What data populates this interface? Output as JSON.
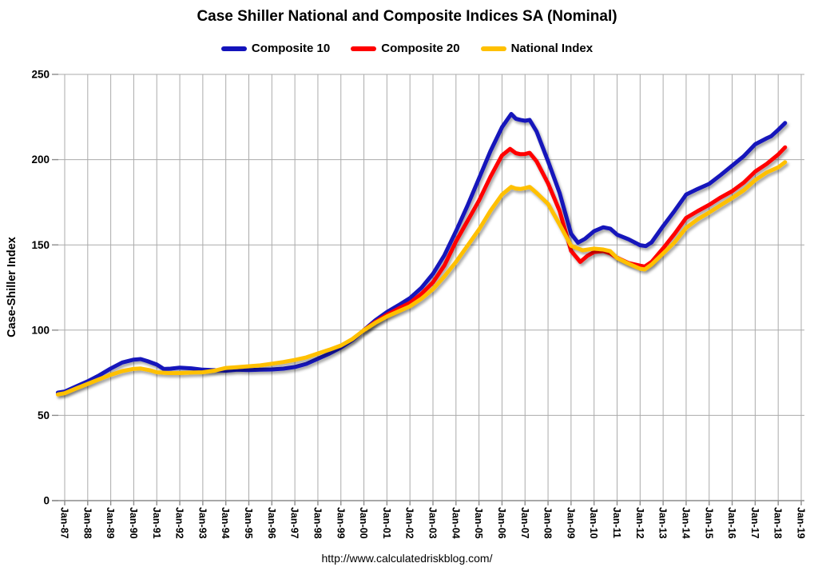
{
  "chart_data": {
    "type": "line",
    "title": "Case Shiller National and Composite Indices SA (Nominal)",
    "footer": "http://www.calculatedriskblog.com/",
    "xlabel": "",
    "ylabel": "Case-Shiller Index",
    "ylim": [
      0,
      250
    ],
    "ytick_step": 50,
    "grid": true,
    "legend_position": "top-center",
    "x_ticks": [
      "Jan-87",
      "Jan-88",
      "Jan-89",
      "Jan-90",
      "Jan-91",
      "Jan-92",
      "Jan-93",
      "Jan-94",
      "Jan-95",
      "Jan-96",
      "Jan-97",
      "Jan-98",
      "Jan-99",
      "Jan-00",
      "Jan-01",
      "Jan-02",
      "Jan-03",
      "Jan-04",
      "Jan-05",
      "Jan-06",
      "Jan-07",
      "Jan-08",
      "Jan-09",
      "Jan-10",
      "Jan-11",
      "Jan-12",
      "Jan-13",
      "Jan-14",
      "Jan-15",
      "Jan-16",
      "Jan-17",
      "Jan-18",
      "Jan-19"
    ],
    "x_unit": "year (Jan of each year shown; data plotted monthly from Jan-87 to ~Apr-18)",
    "series": [
      {
        "name": "Composite 10",
        "color": "#1313BB",
        "points": [
          [
            1986.7,
            63.3
          ],
          [
            1987.0,
            64.0
          ],
          [
            1987.5,
            67.0
          ],
          [
            1988.0,
            70.0
          ],
          [
            1988.5,
            73.5
          ],
          [
            1989.0,
            77.5
          ],
          [
            1989.5,
            81.0
          ],
          [
            1990.0,
            82.7
          ],
          [
            1990.3,
            83.0
          ],
          [
            1990.6,
            81.8
          ],
          [
            1991.0,
            79.8
          ],
          [
            1991.3,
            77.2
          ],
          [
            1991.6,
            77.4
          ],
          [
            1992.0,
            78.0
          ],
          [
            1992.5,
            77.6
          ],
          [
            1993.0,
            76.8
          ],
          [
            1993.5,
            76.5
          ],
          [
            1994.0,
            76.2
          ],
          [
            1994.5,
            76.8
          ],
          [
            1995.0,
            76.6
          ],
          [
            1995.5,
            76.8
          ],
          [
            1996.0,
            76.9
          ],
          [
            1996.5,
            77.4
          ],
          [
            1997.0,
            78.4
          ],
          [
            1997.5,
            80.2
          ],
          [
            1998.0,
            83.2
          ],
          [
            1998.5,
            86.2
          ],
          [
            1999.0,
            89.8
          ],
          [
            1999.5,
            94.2
          ],
          [
            2000.0,
            100.0
          ],
          [
            2000.5,
            105.8
          ],
          [
            2001.0,
            110.6
          ],
          [
            2001.5,
            114.6
          ],
          [
            2002.0,
            118.8
          ],
          [
            2002.5,
            124.8
          ],
          [
            2003.0,
            133.0
          ],
          [
            2003.5,
            144.0
          ],
          [
            2004.0,
            158.0
          ],
          [
            2004.5,
            173.0
          ],
          [
            2005.0,
            189.0
          ],
          [
            2005.5,
            205.0
          ],
          [
            2006.0,
            219.0
          ],
          [
            2006.4,
            226.8
          ],
          [
            2006.6,
            224.0
          ],
          [
            2006.8,
            223.3
          ],
          [
            2007.0,
            222.8
          ],
          [
            2007.2,
            223.3
          ],
          [
            2007.5,
            216.5
          ],
          [
            2008.0,
            199.0
          ],
          [
            2008.5,
            180.5
          ],
          [
            2009.0,
            156.5
          ],
          [
            2009.3,
            151.3
          ],
          [
            2009.6,
            153.5
          ],
          [
            2010.0,
            158.0
          ],
          [
            2010.4,
            160.3
          ],
          [
            2010.7,
            159.5
          ],
          [
            2011.0,
            156.0
          ],
          [
            2011.5,
            153.3
          ],
          [
            2012.0,
            149.8
          ],
          [
            2012.25,
            149.3
          ],
          [
            2012.5,
            151.5
          ],
          [
            2013.0,
            161.0
          ],
          [
            2013.5,
            170.0
          ],
          [
            2014.0,
            179.5
          ],
          [
            2014.5,
            182.8
          ],
          [
            2015.0,
            185.8
          ],
          [
            2015.5,
            191.0
          ],
          [
            2016.0,
            196.5
          ],
          [
            2016.5,
            202.0
          ],
          [
            2017.0,
            209.0
          ],
          [
            2017.5,
            212.5
          ],
          [
            2017.7,
            213.8
          ],
          [
            2018.0,
            217.5
          ],
          [
            2018.3,
            221.5
          ]
        ]
      },
      {
        "name": "Composite 20",
        "color": "#FF0000",
        "points": [
          [
            2000.0,
            100.0
          ],
          [
            2000.5,
            104.8
          ],
          [
            2001.0,
            109.0
          ],
          [
            2001.5,
            112.6
          ],
          [
            2002.0,
            116.0
          ],
          [
            2002.5,
            121.3
          ],
          [
            2003.0,
            128.0
          ],
          [
            2003.5,
            138.0
          ],
          [
            2004.0,
            152.0
          ],
          [
            2004.5,
            164.0
          ],
          [
            2005.0,
            176.0
          ],
          [
            2005.5,
            190.0
          ],
          [
            2006.0,
            202.5
          ],
          [
            2006.35,
            206.3
          ],
          [
            2006.6,
            203.8
          ],
          [
            2006.8,
            203.2
          ],
          [
            2007.0,
            203.3
          ],
          [
            2007.2,
            204.0
          ],
          [
            2007.5,
            199.0
          ],
          [
            2008.0,
            186.0
          ],
          [
            2008.5,
            170.0
          ],
          [
            2009.0,
            146.5
          ],
          [
            2009.4,
            140.0
          ],
          [
            2009.7,
            143.5
          ],
          [
            2010.0,
            145.8
          ],
          [
            2010.4,
            146.4
          ],
          [
            2010.7,
            145.0
          ],
          [
            2011.0,
            142.5
          ],
          [
            2011.5,
            139.3
          ],
          [
            2012.0,
            137.8
          ],
          [
            2012.2,
            137.3
          ],
          [
            2012.5,
            140.0
          ],
          [
            2013.0,
            148.0
          ],
          [
            2013.5,
            156.5
          ],
          [
            2014.0,
            165.8
          ],
          [
            2014.5,
            169.8
          ],
          [
            2015.0,
            173.5
          ],
          [
            2015.5,
            177.8
          ],
          [
            2016.0,
            181.5
          ],
          [
            2016.5,
            186.5
          ],
          [
            2017.0,
            193.0
          ],
          [
            2017.5,
            197.5
          ],
          [
            2018.0,
            203.0
          ],
          [
            2018.3,
            207.2
          ]
        ]
      },
      {
        "name": "National Index",
        "color": "#FFC000",
        "points": [
          [
            1986.7,
            62.3
          ],
          [
            1987.0,
            63.0
          ],
          [
            1987.5,
            65.8
          ],
          [
            1988.0,
            68.5
          ],
          [
            1988.5,
            71.2
          ],
          [
            1989.0,
            73.8
          ],
          [
            1989.5,
            76.0
          ],
          [
            1990.0,
            77.3
          ],
          [
            1990.3,
            77.5
          ],
          [
            1990.7,
            76.5
          ],
          [
            1991.0,
            75.3
          ],
          [
            1991.5,
            74.8
          ],
          [
            1992.0,
            74.8
          ],
          [
            1992.5,
            75.1
          ],
          [
            1993.0,
            75.3
          ],
          [
            1993.5,
            76.2
          ],
          [
            1994.0,
            77.8
          ],
          [
            1994.5,
            78.3
          ],
          [
            1995.0,
            78.8
          ],
          [
            1995.5,
            79.3
          ],
          [
            1996.0,
            80.3
          ],
          [
            1996.5,
            81.3
          ],
          [
            1997.0,
            82.5
          ],
          [
            1997.5,
            84.0
          ],
          [
            1998.0,
            86.3
          ],
          [
            1998.5,
            88.5
          ],
          [
            1999.0,
            91.0
          ],
          [
            1999.5,
            94.8
          ],
          [
            2000.0,
            100.0
          ],
          [
            2000.5,
            104.3
          ],
          [
            2001.0,
            108.0
          ],
          [
            2001.5,
            111.0
          ],
          [
            2002.0,
            114.0
          ],
          [
            2002.5,
            118.5
          ],
          [
            2003.0,
            124.0
          ],
          [
            2003.5,
            131.5
          ],
          [
            2004.0,
            140.0
          ],
          [
            2004.5,
            149.5
          ],
          [
            2005.0,
            159.0
          ],
          [
            2005.5,
            170.0
          ],
          [
            2006.0,
            179.5
          ],
          [
            2006.4,
            184.0
          ],
          [
            2006.6,
            183.0
          ],
          [
            2006.8,
            182.8
          ],
          [
            2007.0,
            183.3
          ],
          [
            2007.2,
            184.0
          ],
          [
            2007.5,
            180.5
          ],
          [
            2008.0,
            174.0
          ],
          [
            2008.5,
            162.0
          ],
          [
            2009.0,
            149.5
          ],
          [
            2009.5,
            146.8
          ],
          [
            2010.0,
            147.8
          ],
          [
            2010.4,
            147.3
          ],
          [
            2010.7,
            146.3
          ],
          [
            2011.0,
            142.3
          ],
          [
            2011.5,
            139.0
          ],
          [
            2012.0,
            136.0
          ],
          [
            2012.2,
            135.6
          ],
          [
            2012.5,
            138.5
          ],
          [
            2013.0,
            145.0
          ],
          [
            2013.5,
            151.5
          ],
          [
            2014.0,
            160.0
          ],
          [
            2014.5,
            165.0
          ],
          [
            2015.0,
            169.0
          ],
          [
            2015.5,
            173.3
          ],
          [
            2016.0,
            177.5
          ],
          [
            2016.5,
            182.0
          ],
          [
            2017.0,
            188.0
          ],
          [
            2017.5,
            192.5
          ],
          [
            2018.0,
            195.5
          ],
          [
            2018.3,
            198.5
          ]
        ]
      }
    ],
    "style": {
      "gridline_color": "#ABABAB",
      "tick_color": "#8C8C8C",
      "background": "#FFFFFF",
      "line_width": 5,
      "line_shadow": true
    }
  }
}
